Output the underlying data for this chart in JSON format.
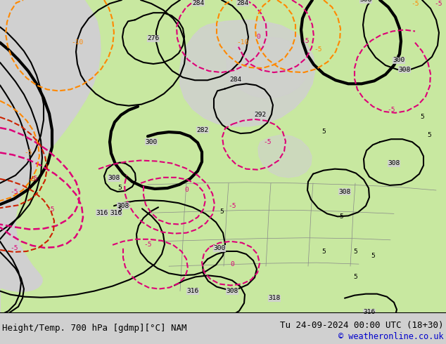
{
  "title_left": "Height/Temp. 700 hPa [gdmp][°C] NAM",
  "title_right": "Tu 24-09-2024 00:00 UTC (18+30)",
  "copyright": "© weatheronline.co.uk",
  "bg_color": "#d0d0d0",
  "land_color": "#c8e8a0",
  "gray_rock_color": "#b8b8b8",
  "black": "#000000",
  "pink": "#dd0077",
  "orange": "#ff8800",
  "dark_red": "#cc2200",
  "state_border": "#888888",
  "footer_fontsize": 9.0,
  "label_fontsize": 6.8,
  "font_mono": "monospace"
}
